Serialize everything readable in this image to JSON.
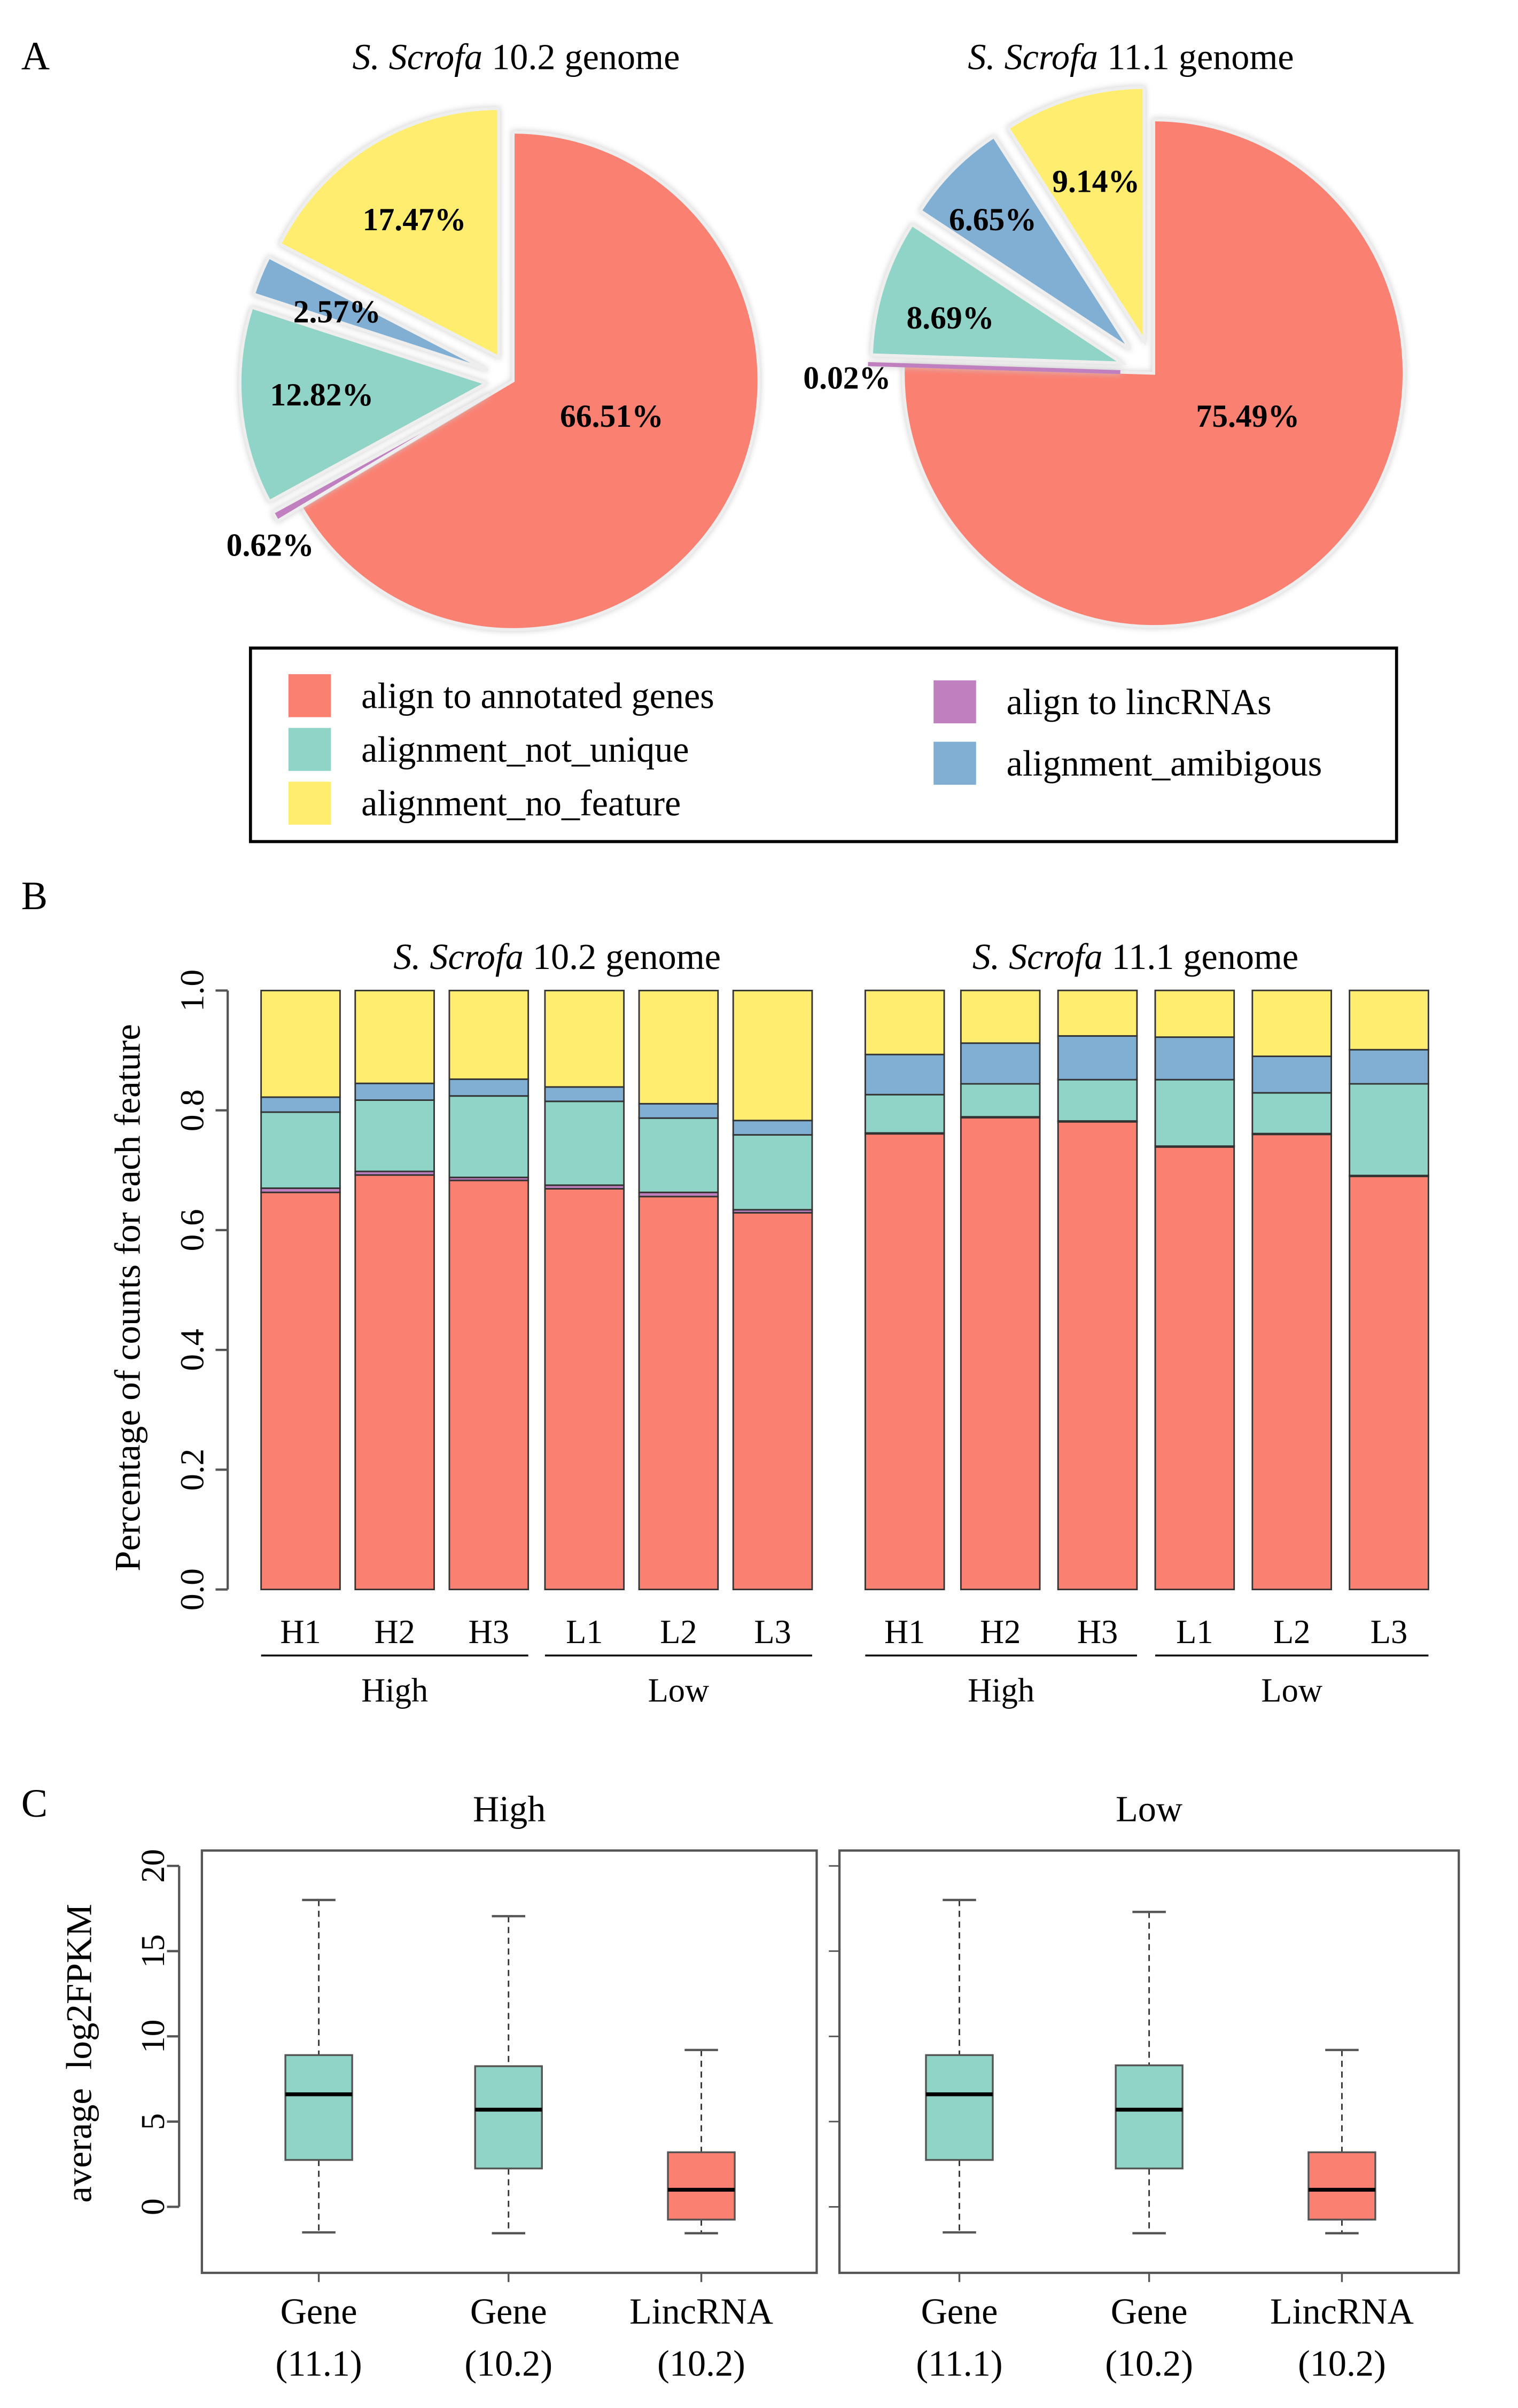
{
  "colors": {
    "annotated": "#FA8072",
    "lincRNA": "#C080C0",
    "not_unique": "#8FD4C6",
    "ambiguous": "#80AFD3",
    "no_feature": "#FFED6F"
  },
  "panel_labels": {
    "a": "A",
    "b": "B",
    "c": "C"
  },
  "legend": [
    {
      "key": "annotated",
      "label": "align to annotated genes"
    },
    {
      "key": "not_unique",
      "label": "alignment_not_unique"
    },
    {
      "key": "no_feature",
      "label": "alignment_no_feature"
    },
    {
      "key": "lincRNA",
      "label": "align to lincRNAs"
    },
    {
      "key": "ambiguous",
      "label": "alignment_amibigous"
    }
  ],
  "chart_data": [
    {
      "type": "pie",
      "panel": "A",
      "title_italic": "S. Scrofa",
      "title_rest": " 10.2 genome",
      "slices": [
        {
          "key": "annotated",
          "value": 66.51,
          "label": "66.51%"
        },
        {
          "key": "lincRNA",
          "value": 0.62,
          "label": "0.62%"
        },
        {
          "key": "not_unique",
          "value": 12.82,
          "label": "12.82%"
        },
        {
          "key": "ambiguous",
          "value": 2.57,
          "label": "2.57%"
        },
        {
          "key": "no_feature",
          "value": 17.47,
          "label": "17.47%"
        }
      ]
    },
    {
      "type": "pie",
      "panel": "A",
      "title_italic": "S. Scrofa",
      "title_rest": " 11.1 genome",
      "slices": [
        {
          "key": "annotated",
          "value": 75.49,
          "label": "75.49%"
        },
        {
          "key": "lincRNA",
          "value": 0.02,
          "label": "0.02%"
        },
        {
          "key": "not_unique",
          "value": 8.69,
          "label": "8.69%"
        },
        {
          "key": "ambiguous",
          "value": 6.65,
          "label": "6.65%"
        },
        {
          "key": "no_feature",
          "value": 9.14,
          "label": "9.14%"
        }
      ]
    },
    {
      "type": "bar",
      "stacked": true,
      "panel": "B",
      "ylabel": "Percentage of counts for each feature",
      "ylim": [
        0,
        1
      ],
      "yticks": [
        "0.0",
        "0.2",
        "0.4",
        "0.6",
        "0.8",
        "1.0"
      ],
      "stack_order": [
        "annotated",
        "lincRNA",
        "not_unique",
        "ambiguous",
        "no_feature"
      ],
      "panels": [
        {
          "title_italic": "S. Scrofa",
          "title_rest": " 10.2 genome",
          "categories": [
            "H1",
            "H2",
            "H3",
            "L1",
            "L2",
            "L3"
          ],
          "groups": [
            {
              "label": "High",
              "members": [
                "H1",
                "H2",
                "H3"
              ]
            },
            {
              "label": "Low",
              "members": [
                "L1",
                "L2",
                "L3"
              ]
            }
          ],
          "values": [
            [
              0.663,
              0.007,
              0.127,
              0.025,
              0.178
            ],
            [
              0.692,
              0.006,
              0.119,
              0.028,
              0.155
            ],
            [
              0.683,
              0.005,
              0.136,
              0.028,
              0.148
            ],
            [
              0.669,
              0.006,
              0.14,
              0.024,
              0.161
            ],
            [
              0.656,
              0.007,
              0.124,
              0.024,
              0.189
            ],
            [
              0.629,
              0.005,
              0.125,
              0.024,
              0.217
            ]
          ]
        },
        {
          "title_italic": "S. Scrofa",
          "title_rest": " 11.1 genome",
          "categories": [
            "H1",
            "H2",
            "H3",
            "L1",
            "L2",
            "L3"
          ],
          "groups": [
            {
              "label": "High",
              "members": [
                "H1",
                "H2",
                "H3"
              ]
            },
            {
              "label": "Low",
              "members": [
                "L1",
                "L2",
                "L3"
              ]
            }
          ],
          "values": [
            [
              0.762,
              0.0002,
              0.064,
              0.067,
              0.107
            ],
            [
              0.789,
              0.0002,
              0.055,
              0.068,
              0.088
            ],
            [
              0.782,
              0.0002,
              0.069,
              0.073,
              0.076
            ],
            [
              0.74,
              0.0002,
              0.111,
              0.071,
              0.078
            ],
            [
              0.761,
              0.0002,
              0.068,
              0.061,
              0.11
            ],
            [
              0.691,
              0.0002,
              0.153,
              0.057,
              0.099
            ]
          ]
        }
      ]
    },
    {
      "type": "boxplot",
      "panel": "C",
      "ylabel": "average  log2FPKM",
      "ylim": [
        -3,
        21
      ],
      "yticks": [
        "0",
        "5",
        "10",
        "15",
        "20"
      ],
      "panels": [
        {
          "title": "High",
          "boxes": [
            {
              "label1": "Gene",
              "label2": "(11.1)",
              "key": "not_unique",
              "min": -1.5,
              "q1": 2.75,
              "median": 6.6,
              "q3": 8.9,
              "max": 18.0
            },
            {
              "label1": "Gene",
              "label2": "(10.2)",
              "key": "not_unique",
              "min": -1.55,
              "q1": 2.25,
              "median": 5.7,
              "q3": 8.25,
              "max": 17.05
            },
            {
              "label1": "LincRNA",
              "label2": "(10.2)",
              "key": "annotated",
              "min": -1.55,
              "q1": -0.75,
              "median": 1.0,
              "q3": 3.2,
              "max": 9.2
            }
          ]
        },
        {
          "title": "Low",
          "boxes": [
            {
              "label1": "Gene",
              "label2": "(11.1)",
              "key": "not_unique",
              "min": -1.5,
              "q1": 2.75,
              "median": 6.6,
              "q3": 8.9,
              "max": 18.0
            },
            {
              "label1": "Gene",
              "label2": "(10.2)",
              "key": "not_unique",
              "min": -1.55,
              "q1": 2.25,
              "median": 5.7,
              "q3": 8.3,
              "max": 17.3
            },
            {
              "label1": "LincRNA",
              "label2": "(10.2)",
              "key": "annotated",
              "min": -1.55,
              "q1": -0.75,
              "median": 1.0,
              "q3": 3.2,
              "max": 9.2
            }
          ]
        }
      ]
    }
  ]
}
